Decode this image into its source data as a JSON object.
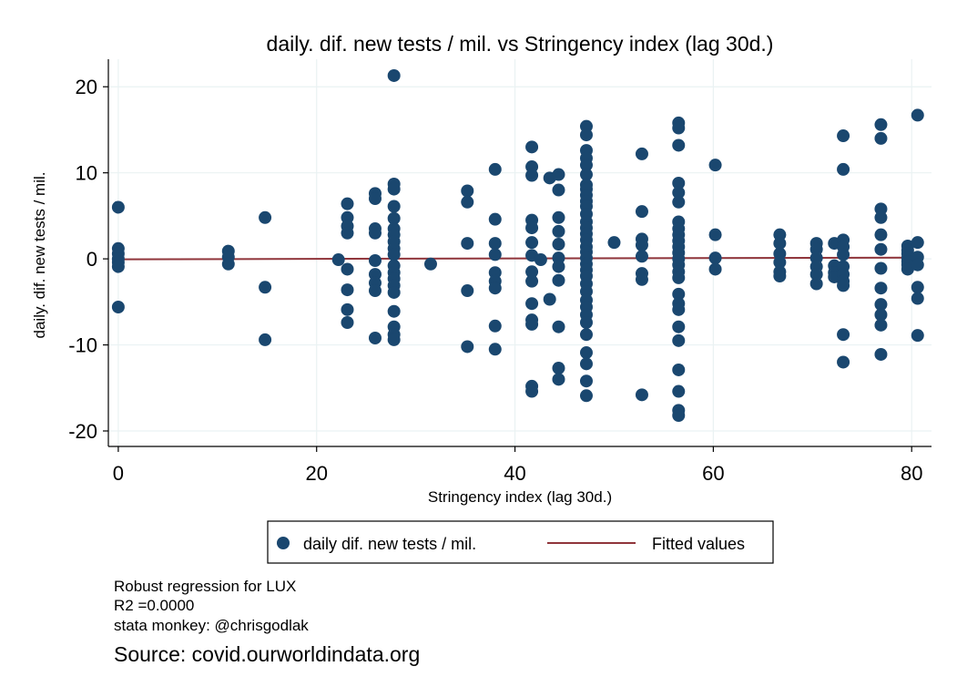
{
  "chart_data": {
    "type": "scatter",
    "title": "daily. dif. new tests / mil. vs Stringency index (lag 30d.)",
    "xlabel": "Stringency index (lag 30d.)",
    "ylabel": "daily. dif. new tests / mil.",
    "xlim": [
      -1,
      82
    ],
    "ylim": [
      -21.8,
      23.2
    ],
    "xticks": [
      0,
      20,
      40,
      60,
      80
    ],
    "yticks": [
      20,
      10,
      0,
      -10,
      -20
    ],
    "grid": true,
    "legend_position": "bottom",
    "colors": {
      "points": "#1a476f",
      "fit": "#90353b",
      "grid": "#eaf2f3"
    },
    "series": [
      {
        "name": "daily dif. new tests / mil.",
        "points": [
          [
            0,
            6
          ],
          [
            0,
            1.2
          ],
          [
            0,
            0.6
          ],
          [
            0,
            0
          ],
          [
            0,
            -0.4
          ],
          [
            0,
            -0.9
          ],
          [
            0,
            -5.6
          ],
          [
            11.1,
            0.9
          ],
          [
            11.1,
            0.2
          ],
          [
            11.1,
            -0.6
          ],
          [
            14.8,
            4.8
          ],
          [
            14.8,
            -3.3
          ],
          [
            14.8,
            -9.4
          ],
          [
            22.2,
            -0.1
          ],
          [
            23.1,
            6.4
          ],
          [
            23.1,
            4.8
          ],
          [
            23.1,
            3.8
          ],
          [
            23.1,
            3.0
          ],
          [
            23.1,
            -1.2
          ],
          [
            23.1,
            -3.6
          ],
          [
            23.1,
            -5.9
          ],
          [
            23.1,
            -7.4
          ],
          [
            25.9,
            7.6
          ],
          [
            25.9,
            7.0
          ],
          [
            25.9,
            3.5
          ],
          [
            25.9,
            3.0
          ],
          [
            25.9,
            -0.2
          ],
          [
            25.9,
            -1.8
          ],
          [
            25.9,
            -2.8
          ],
          [
            25.9,
            -3.7
          ],
          [
            25.9,
            -9.2
          ],
          [
            27.8,
            21.3
          ],
          [
            27.8,
            8.7
          ],
          [
            27.8,
            8.1
          ],
          [
            27.8,
            6.1
          ],
          [
            27.8,
            4.7
          ],
          [
            27.8,
            3.5
          ],
          [
            27.8,
            2.8
          ],
          [
            27.8,
            2.0
          ],
          [
            27.8,
            1.2
          ],
          [
            27.8,
            0.5
          ],
          [
            27.8,
            -0.8
          ],
          [
            27.8,
            -1.6
          ],
          [
            27.8,
            -2.3
          ],
          [
            27.8,
            -3.1
          ],
          [
            27.8,
            -3.9
          ],
          [
            27.8,
            -6.1
          ],
          [
            27.8,
            -7.9
          ],
          [
            27.8,
            -8.8
          ],
          [
            27.8,
            -9.4
          ],
          [
            31.5,
            -0.6
          ],
          [
            35.2,
            7.9
          ],
          [
            35.2,
            6.6
          ],
          [
            35.2,
            1.8
          ],
          [
            35.2,
            -3.7
          ],
          [
            35.2,
            -10.2
          ],
          [
            38,
            10.4
          ],
          [
            38,
            4.6
          ],
          [
            38,
            1.8
          ],
          [
            38,
            0.5
          ],
          [
            38,
            -1.6
          ],
          [
            38,
            -2.6
          ],
          [
            38,
            -3.4
          ],
          [
            38,
            -7.8
          ],
          [
            38,
            -10.5
          ],
          [
            41.7,
            13.0
          ],
          [
            41.7,
            10.7
          ],
          [
            41.7,
            9.7
          ],
          [
            41.7,
            4.5
          ],
          [
            41.7,
            3.6
          ],
          [
            41.7,
            1.9
          ],
          [
            41.7,
            0.4
          ],
          [
            41.7,
            -1.5
          ],
          [
            41.7,
            -2.6
          ],
          [
            41.7,
            -5.2
          ],
          [
            41.7,
            -7.1
          ],
          [
            41.7,
            -7.6
          ],
          [
            41.7,
            -14.8
          ],
          [
            41.7,
            -15.4
          ],
          [
            42.6,
            -0.1
          ],
          [
            43.5,
            9.4
          ],
          [
            43.5,
            -4.7
          ],
          [
            44.4,
            9.8
          ],
          [
            44.4,
            8.0
          ],
          [
            44.4,
            4.8
          ],
          [
            44.4,
            3.2
          ],
          [
            44.4,
            1.7
          ],
          [
            44.4,
            0.1
          ],
          [
            44.4,
            -0.9
          ],
          [
            44.4,
            -2.5
          ],
          [
            44.4,
            -7.9
          ],
          [
            44.4,
            -12.7
          ],
          [
            44.4,
            -14.0
          ],
          [
            47.2,
            15.4
          ],
          [
            47.2,
            14.4
          ],
          [
            47.2,
            12.6
          ],
          [
            47.2,
            11.7
          ],
          [
            47.2,
            10.9
          ],
          [
            47.2,
            9.8
          ],
          [
            47.2,
            8.6
          ],
          [
            47.2,
            8.1
          ],
          [
            47.2,
            7.4
          ],
          [
            47.2,
            6.7
          ],
          [
            47.2,
            6.1
          ],
          [
            47.2,
            5.2
          ],
          [
            47.2,
            4.3
          ],
          [
            47.2,
            3.6
          ],
          [
            47.2,
            2.9
          ],
          [
            47.2,
            2.2
          ],
          [
            47.2,
            1.4
          ],
          [
            47.2,
            0.8
          ],
          [
            47.2,
            0.1
          ],
          [
            47.2,
            -0.6
          ],
          [
            47.2,
            -1.3
          ],
          [
            47.2,
            -2.0
          ],
          [
            47.2,
            -2.9
          ],
          [
            47.2,
            -3.8
          ],
          [
            47.2,
            -4.8
          ],
          [
            47.2,
            -5.6
          ],
          [
            47.2,
            -6.5
          ],
          [
            47.2,
            -7.4
          ],
          [
            47.2,
            -8.8
          ],
          [
            47.2,
            -10.9
          ],
          [
            47.2,
            -12.2
          ],
          [
            47.2,
            -14.2
          ],
          [
            47.2,
            -15.9
          ],
          [
            50,
            1.9
          ],
          [
            52.8,
            12.2
          ],
          [
            52.8,
            5.5
          ],
          [
            52.8,
            2.3
          ],
          [
            52.8,
            1.6
          ],
          [
            52.8,
            0.3
          ],
          [
            52.8,
            -1.7
          ],
          [
            52.8,
            -2.4
          ],
          [
            52.8,
            -15.8
          ],
          [
            56.5,
            15.8
          ],
          [
            56.5,
            15.2
          ],
          [
            56.5,
            13.2
          ],
          [
            56.5,
            8.8
          ],
          [
            56.5,
            7.7
          ],
          [
            56.5,
            6.6
          ],
          [
            56.5,
            4.3
          ],
          [
            56.5,
            3.5
          ],
          [
            56.5,
            2.8
          ],
          [
            56.5,
            2.1
          ],
          [
            56.5,
            1.4
          ],
          [
            56.5,
            0.7
          ],
          [
            56.5,
            0
          ],
          [
            56.5,
            -0.7
          ],
          [
            56.5,
            -1.5
          ],
          [
            56.5,
            -2.2
          ],
          [
            56.5,
            -4.1
          ],
          [
            56.5,
            -5.2
          ],
          [
            56.5,
            -5.9
          ],
          [
            56.5,
            -7.9
          ],
          [
            56.5,
            -9.5
          ],
          [
            56.5,
            -12.9
          ],
          [
            56.5,
            -15.4
          ],
          [
            56.5,
            -17.6
          ],
          [
            56.5,
            -18.2
          ],
          [
            60.2,
            10.9
          ],
          [
            60.2,
            2.8
          ],
          [
            60.2,
            0.1
          ],
          [
            60.2,
            -1.2
          ],
          [
            66.7,
            2.8
          ],
          [
            66.7,
            1.8
          ],
          [
            66.7,
            0.6
          ],
          [
            66.7,
            -0.4
          ],
          [
            66.7,
            -1.5
          ],
          [
            66.7,
            -2.0
          ],
          [
            70.4,
            1.8
          ],
          [
            70.4,
            1.1
          ],
          [
            70.4,
            0.1
          ],
          [
            70.4,
            -0.9
          ],
          [
            70.4,
            -1.8
          ],
          [
            70.4,
            -2.9
          ],
          [
            72.2,
            1.8
          ],
          [
            72.2,
            -0.8
          ],
          [
            72.2,
            -1.6
          ],
          [
            72.2,
            -2.1
          ],
          [
            73.1,
            14.3
          ],
          [
            73.1,
            10.4
          ],
          [
            73.1,
            2.2
          ],
          [
            73.1,
            1.4
          ],
          [
            73.1,
            0.5
          ],
          [
            73.1,
            -0.9
          ],
          [
            73.1,
            -1.8
          ],
          [
            73.1,
            -2.6
          ],
          [
            73.1,
            -3.1
          ],
          [
            73.1,
            -8.8
          ],
          [
            73.1,
            -12.0
          ],
          [
            76.9,
            15.6
          ],
          [
            76.9,
            14.0
          ],
          [
            76.9,
            5.8
          ],
          [
            76.9,
            4.8
          ],
          [
            76.9,
            2.8
          ],
          [
            76.9,
            1.1
          ],
          [
            76.9,
            -1.1
          ],
          [
            76.9,
            -3.4
          ],
          [
            76.9,
            -5.3
          ],
          [
            76.9,
            -6.5
          ],
          [
            76.9,
            -7.7
          ],
          [
            76.9,
            -11.1
          ],
          [
            79.6,
            1.5
          ],
          [
            79.6,
            1.0
          ],
          [
            79.6,
            0.6
          ],
          [
            79.6,
            0.1
          ],
          [
            79.6,
            -0.3
          ],
          [
            79.6,
            -0.7
          ],
          [
            79.6,
            -1.2
          ],
          [
            80.6,
            16.7
          ],
          [
            80.6,
            1.9
          ],
          [
            80.6,
            0.2
          ],
          [
            80.6,
            -0.7
          ],
          [
            80.6,
            -3.3
          ],
          [
            80.6,
            -4.6
          ],
          [
            80.6,
            -8.9
          ]
        ]
      },
      {
        "name": "Fitted values",
        "line": [
          [
            0,
            -0.05
          ],
          [
            80.6,
            0.15
          ]
        ]
      }
    ]
  },
  "notes": {
    "line1": "Robust regression for LUX",
    "line2": "R2 =0.0000",
    "line3": "stata monkey: @chrisgodlak"
  },
  "source": "Source: covid.ourworldindata.org"
}
